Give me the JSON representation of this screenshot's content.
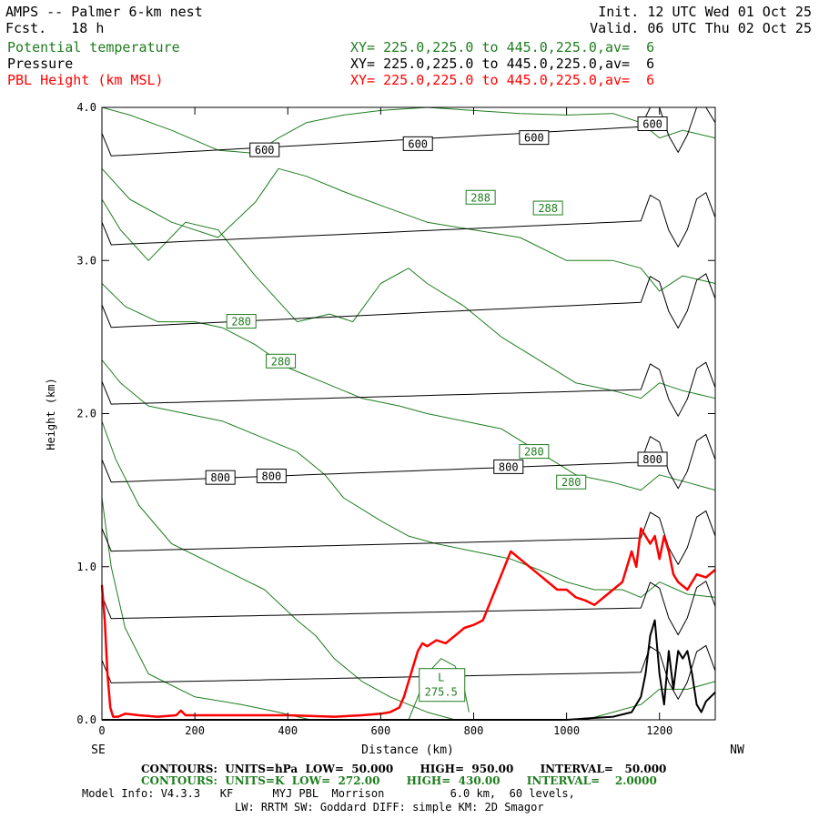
{
  "header": {
    "title": "AMPS -- Palmer 6-km nest",
    "fcst": "Fcst.   18 h",
    "init": "Init. 12 UTC Wed 01 Oct 25",
    "valid": "Valid. 06 UTC Thu 02 Oct 25",
    "fields": [
      {
        "name": "Potential temperature",
        "xy": "XY= 225.0,225.0 to 445.0,225.0,av=  6",
        "color": "#1e7d1e"
      },
      {
        "name": "Pressure",
        "xy": "XY= 225.0,225.0 to 445.0,225.0,av=  6",
        "color": "#000000"
      },
      {
        "name": "PBL Height (km MSL)",
        "xy": "XY= 225.0,225.0 to 445.0,225.0,av=  6",
        "color": "#ff0000"
      }
    ]
  },
  "footer": {
    "contours_p": "CONTOURS:  UNITS=hPa  LOW=  50.000       HIGH=  950.00       INTERVAL=   50.000",
    "contours_t": "CONTOURS:  UNITS=K  LOW=  272.00       HIGH=  430.00       INTERVAL=    2.0000",
    "model_info": "Model Info: V4.3.3   KF      MYJ PBL  Morrison          6.0 km,  60 levels,",
    "model_info2": "LW: RRTM SW: Goddard DIFF: simple KM: 2D Smagor"
  },
  "chart_data": {
    "type": "line",
    "xlabel": "Distance (km)",
    "ylabel": "Height (km)",
    "xlim": [
      0,
      1320
    ],
    "ylim": [
      0,
      4.0
    ],
    "x_ticks": [
      0,
      200,
      400,
      600,
      800,
      1000,
      1200
    ],
    "x_tick_labels": [
      "0",
      "200",
      "400",
      "600",
      "800",
      "1000",
      "1200"
    ],
    "y_ticks": [
      0,
      1.0,
      2.0,
      3.0,
      4.0
    ],
    "y_tick_labels": [
      "0.0",
      "1.0",
      "2.0",
      "3.0",
      "4.0"
    ],
    "left_end_label": "SE",
    "right_end_label": "NW",
    "pressure_labels": [
      {
        "text": "600",
        "x": 350,
        "y": 3.72
      },
      {
        "text": "600",
        "x": 680,
        "y": 3.76
      },
      {
        "text": "600",
        "x": 930,
        "y": 3.8
      },
      {
        "text": "600",
        "x": 1185,
        "y": 3.89
      },
      {
        "text": "800",
        "x": 255,
        "y": 1.58
      },
      {
        "text": "800",
        "x": 365,
        "y": 1.59
      },
      {
        "text": "800",
        "x": 875,
        "y": 1.65
      },
      {
        "text": "800",
        "x": 1185,
        "y": 1.7
      }
    ],
    "theta_labels": [
      {
        "text": "288",
        "x": 815,
        "y": 3.41
      },
      {
        "text": "288",
        "x": 960,
        "y": 3.34
      },
      {
        "text": "280",
        "x": 300,
        "y": 2.6
      },
      {
        "text": "280",
        "x": 385,
        "y": 2.34
      },
      {
        "text": "280",
        "x": 930,
        "y": 1.75
      },
      {
        "text": "280",
        "x": 1010,
        "y": 1.55
      }
    ],
    "low_label": {
      "letter": "L",
      "value": "275.5",
      "x": 730,
      "y": 0.18
    },
    "pbl_height": {
      "name": "PBL Height (km MSL)",
      "color": "#ff0000",
      "x": [
        0,
        6,
        12,
        18,
        24,
        35,
        50,
        80,
        120,
        160,
        170,
        180,
        220,
        300,
        400,
        500,
        560,
        600,
        620,
        640,
        650,
        660,
        670,
        680,
        690,
        700,
        720,
        740,
        760,
        780,
        800,
        820,
        840,
        860,
        880,
        900,
        920,
        940,
        960,
        980,
        1000,
        1020,
        1040,
        1060,
        1080,
        1100,
        1120,
        1140,
        1150,
        1160,
        1170,
        1180,
        1190,
        1200,
        1210,
        1220,
        1230,
        1240,
        1260,
        1280,
        1300,
        1320
      ],
      "y": [
        0.88,
        0.65,
        0.3,
        0.08,
        0.02,
        0.02,
        0.04,
        0.03,
        0.02,
        0.03,
        0.06,
        0.03,
        0.03,
        0.03,
        0.03,
        0.02,
        0.03,
        0.04,
        0.05,
        0.08,
        0.15,
        0.25,
        0.35,
        0.45,
        0.5,
        0.48,
        0.52,
        0.5,
        0.55,
        0.6,
        0.62,
        0.65,
        0.8,
        0.95,
        1.1,
        1.05,
        1.0,
        0.95,
        0.9,
        0.85,
        0.85,
        0.8,
        0.78,
        0.75,
        0.8,
        0.85,
        0.9,
        1.1,
        1.0,
        1.25,
        1.2,
        1.15,
        1.2,
        1.05,
        1.2,
        1.1,
        0.95,
        0.9,
        0.85,
        0.95,
        0.93,
        0.98
      ]
    },
    "terrain": {
      "name": "Terrain",
      "color": "#000000",
      "x": [
        0,
        600,
        1000,
        1050,
        1100,
        1140,
        1160,
        1170,
        1180,
        1190,
        1200,
        1210,
        1220,
        1230,
        1240,
        1250,
        1260,
        1270,
        1280,
        1290,
        1300,
        1320
      ],
      "y": [
        0,
        0,
        0,
        0.01,
        0.02,
        0.05,
        0.15,
        0.3,
        0.55,
        0.65,
        0.3,
        0.1,
        0.45,
        0.2,
        0.45,
        0.4,
        0.45,
        0.3,
        0.1,
        0.05,
        0.12,
        0.18
      ]
    },
    "pressure_contours": {
      "name": "Pressure",
      "color": "#000000",
      "left_y": [
        3.68,
        3.1,
        2.56,
        2.06,
        1.55,
        1.1,
        0.66,
        0.24
      ],
      "right_y": [
        3.9,
        3.28,
        2.75,
        2.17,
        1.7,
        1.2,
        0.74,
        0.32
      ]
    },
    "theta_contours": {
      "name": "Potential temperature",
      "color": "#1e7d1e",
      "lines": [
        {
          "x": [
            0,
            60,
            150,
            250,
            330,
            380,
            440,
            520,
            600,
            700,
            800,
            900,
            1000,
            1100,
            1160,
            1200,
            1250,
            1320
          ],
          "y": [
            4.0,
            3.95,
            3.85,
            3.72,
            3.7,
            3.8,
            3.9,
            3.95,
            3.98,
            4.0,
            3.98,
            3.96,
            3.95,
            3.96,
            3.9,
            3.8,
            3.85,
            3.8
          ]
        },
        {
          "x": [
            0,
            60,
            150,
            250,
            330,
            380,
            440,
            520,
            600,
            700,
            800,
            900,
            1000,
            1100,
            1160,
            1200,
            1250,
            1320
          ],
          "y": [
            3.6,
            3.4,
            3.25,
            3.15,
            3.38,
            3.6,
            3.55,
            3.45,
            3.36,
            3.25,
            3.2,
            3.15,
            3.0,
            3.0,
            2.95,
            2.8,
            2.9,
            2.85
          ]
        },
        {
          "x": [
            0,
            40,
            100,
            180,
            250,
            330,
            420,
            490,
            540,
            600,
            660,
            700,
            780,
            860,
            940,
            1020,
            1100,
            1160,
            1200,
            1250,
            1320
          ],
          "y": [
            3.4,
            3.2,
            3.0,
            3.25,
            3.2,
            2.9,
            2.6,
            2.65,
            2.6,
            2.85,
            2.95,
            2.85,
            2.7,
            2.5,
            2.35,
            2.2,
            2.15,
            2.1,
            2.2,
            2.15,
            2.1
          ]
        },
        {
          "x": [
            0,
            50,
            120,
            200,
            260,
            330,
            400,
            480,
            560,
            640,
            700,
            780,
            860,
            940,
            1020,
            1100,
            1160,
            1200,
            1260,
            1320
          ],
          "y": [
            2.85,
            2.7,
            2.6,
            2.6,
            2.56,
            2.45,
            2.3,
            2.2,
            2.1,
            2.05,
            2.0,
            1.95,
            1.9,
            1.75,
            1.6,
            1.55,
            1.5,
            1.6,
            1.55,
            1.5
          ]
        },
        {
          "x": [
            0,
            40,
            100,
            180,
            260,
            340,
            420,
            480,
            520,
            600,
            660,
            720,
            800,
            880,
            940,
            1000,
            1060,
            1120,
            1160,
            1200,
            1260,
            1320
          ],
          "y": [
            2.35,
            2.2,
            2.05,
            2.0,
            1.95,
            1.85,
            1.75,
            1.6,
            1.45,
            1.3,
            1.2,
            1.15,
            1.1,
            1.05,
            0.98,
            0.9,
            0.85,
            0.85,
            0.8,
            0.9,
            0.82,
            0.8
          ]
        },
        {
          "x": [
            0,
            30,
            80,
            150,
            250,
            350,
            420,
            460,
            500,
            560,
            620,
            700,
            760,
            840,
            900,
            960,
            1040,
            1100,
            1160,
            1200,
            1260,
            1320
          ],
          "y": [
            1.95,
            1.7,
            1.4,
            1.15,
            1.0,
            0.85,
            0.65,
            0.55,
            0.4,
            0.25,
            0.15,
            0.05,
            0.0,
            0.0,
            0.0,
            0.0,
            0.0,
            0.05,
            0.1,
            0.2,
            0.2,
            0.25
          ]
        },
        {
          "x": [
            0,
            20,
            50,
            100,
            200,
            300,
            380,
            420,
            450,
            480
          ],
          "y": [
            1.45,
            1.0,
            0.6,
            0.3,
            0.15,
            0.1,
            0.05,
            0.02,
            0.0,
            0.0
          ]
        },
        {
          "x": [
            660,
            680,
            700,
            730,
            760,
            780,
            790
          ],
          "y": [
            0.0,
            0.15,
            0.3,
            0.4,
            0.35,
            0.2,
            0.05
          ]
        }
      ]
    }
  }
}
